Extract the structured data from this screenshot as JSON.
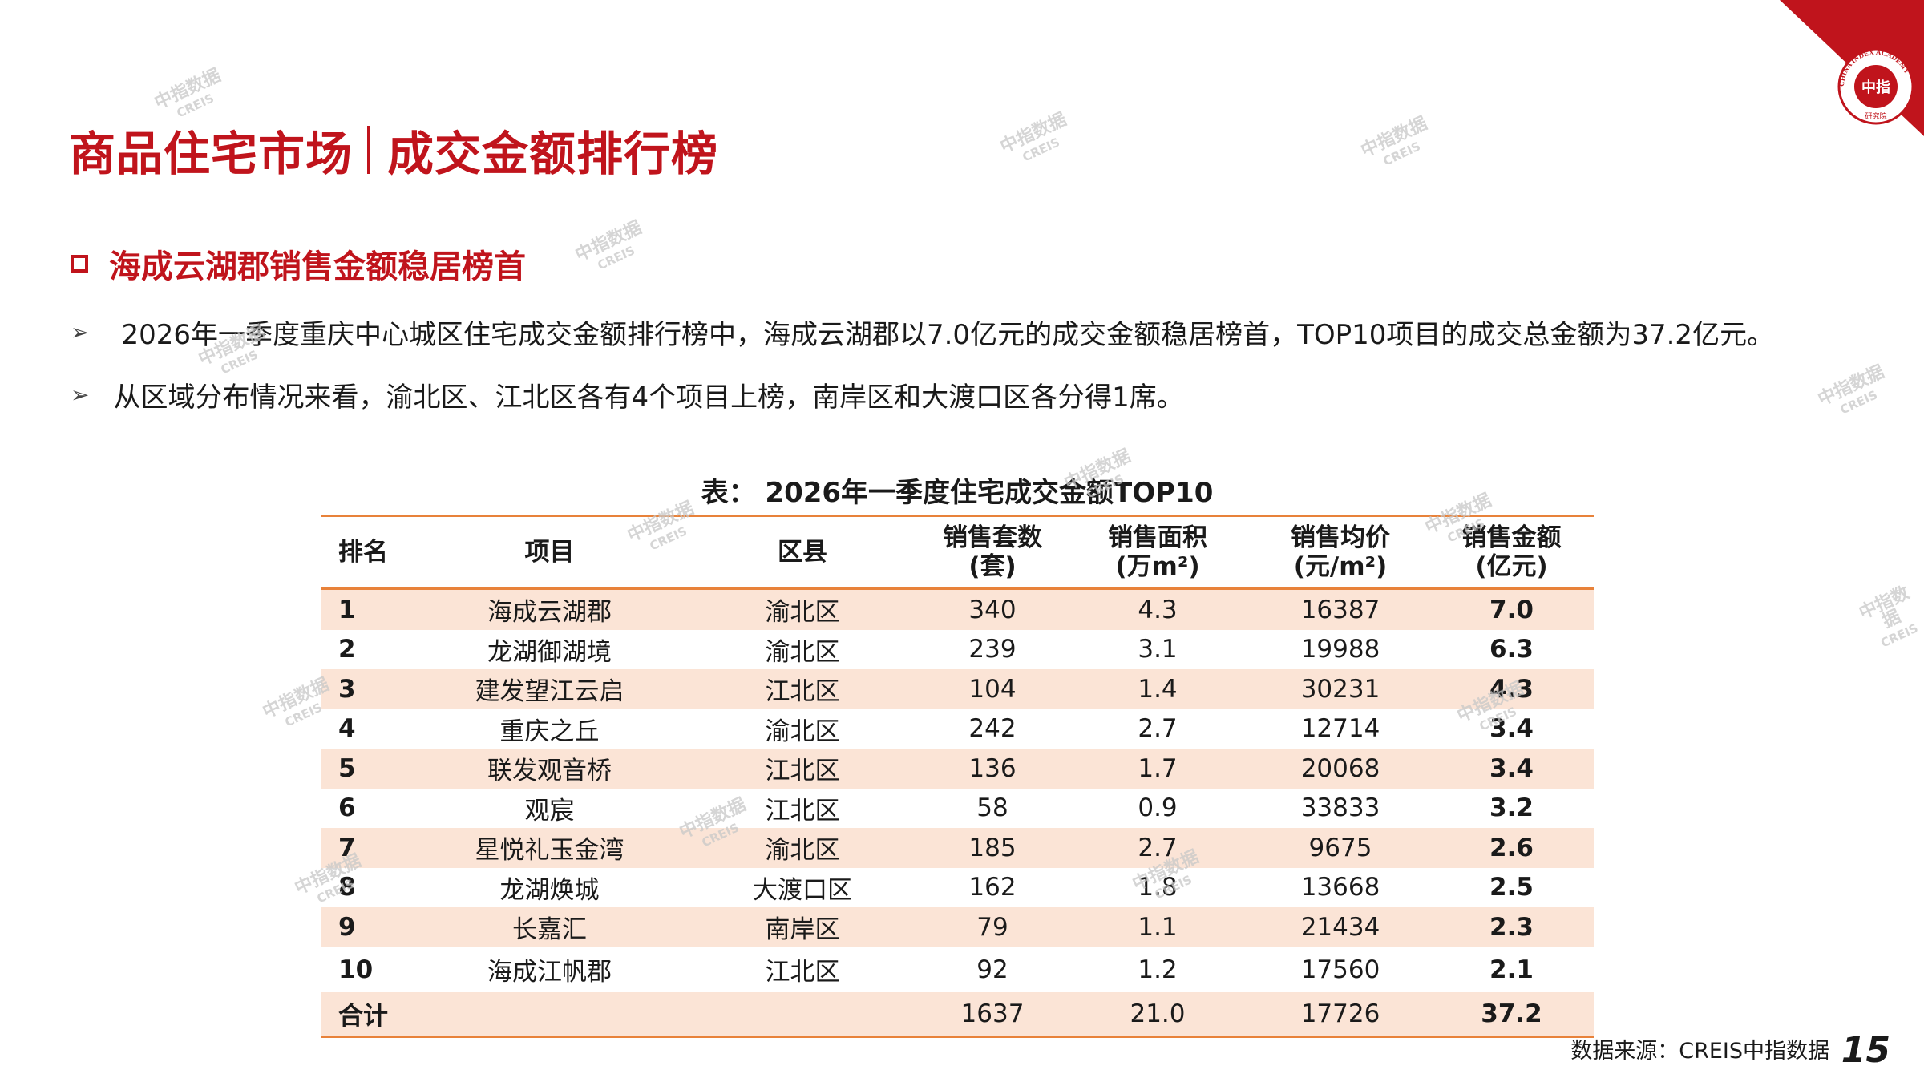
{
  "header": {
    "title_left": "商品住宅市场",
    "title_right": "成交金额排行榜"
  },
  "logo": {
    "arc_text": "CHINA INDEX ACADEMY",
    "center_text": "中指",
    "bottom_text": "研究院",
    "color": "#c0141c"
  },
  "section": {
    "heading": "海成云湖郡销售金额稳居榜首"
  },
  "bullets": [
    "2026年一季度重庆中心城区住宅成交金额排行榜中，海成云湖郡以7.0亿元的成交金额稳居榜首，TOP10项目的成交总金额为37.2亿元。",
    "从区域分布情况来看，渝北区、江北区各有4个项目上榜，南岸区和大渡口区各分得1席。"
  ],
  "table": {
    "caption": "表： 2026年一季度住宅成交金额TOP10",
    "headers": [
      {
        "line1": "排名",
        "line2": ""
      },
      {
        "line1": "项目",
        "line2": ""
      },
      {
        "line1": "区县",
        "line2": ""
      },
      {
        "line1": "销售套数",
        "line2": "(套)"
      },
      {
        "line1": "销售面积",
        "line2": "(万m²)"
      },
      {
        "line1": "销售均价",
        "line2": "(元/m²)"
      },
      {
        "line1": "销售金额",
        "line2": "(亿元)"
      }
    ],
    "rows": [
      {
        "rank": "1",
        "project": "海成云湖郡",
        "district": "渝北区",
        "units": "340",
        "area": "4.3",
        "price": "16387",
        "amount": "7.0"
      },
      {
        "rank": "2",
        "project": "龙湖御湖境",
        "district": "渝北区",
        "units": "239",
        "area": "3.1",
        "price": "19988",
        "amount": "6.3"
      },
      {
        "rank": "3",
        "project": "建发望江云启",
        "district": "江北区",
        "units": "104",
        "area": "1.4",
        "price": "30231",
        "amount": "4.3"
      },
      {
        "rank": "4",
        "project": "重庆之丘",
        "district": "渝北区",
        "units": "242",
        "area": "2.7",
        "price": "12714",
        "amount": "3.4"
      },
      {
        "rank": "5",
        "project": "联发观音桥",
        "district": "江北区",
        "units": "136",
        "area": "1.7",
        "price": "20068",
        "amount": "3.4"
      },
      {
        "rank": "6",
        "project": "观宸",
        "district": "江北区",
        "units": "58",
        "area": "0.9",
        "price": "33833",
        "amount": "3.2"
      },
      {
        "rank": "7",
        "project": "星悦礼玉金湾",
        "district": "渝北区",
        "units": "185",
        "area": "2.7",
        "price": "9675",
        "amount": "2.6"
      },
      {
        "rank": "8",
        "project": "龙湖焕城",
        "district": "大渡口区",
        "units": "162",
        "area": "1.8",
        "price": "13668",
        "amount": "2.5"
      },
      {
        "rank": "9",
        "project": "长嘉汇",
        "district": "南岸区",
        "units": "79",
        "area": "1.1",
        "price": "21434",
        "amount": "2.3"
      },
      {
        "rank": "10",
        "project": "海成江帆郡",
        "district": "江北区",
        "units": "92",
        "area": "1.2",
        "price": "17560",
        "amount": "2.1"
      }
    ],
    "total": {
      "label": "合计",
      "units": "1637",
      "area": "21.0",
      "price": "17726",
      "amount": "37.2"
    }
  },
  "footer": {
    "source": "数据来源：CREIS中指数据",
    "page": "15"
  },
  "watermark": {
    "line1": "中指数据",
    "line2": "CREIS"
  },
  "colors": {
    "brand_red": "#c0141c",
    "table_rule": "#e8823a",
    "row_stripe": "#fbe4d6"
  }
}
